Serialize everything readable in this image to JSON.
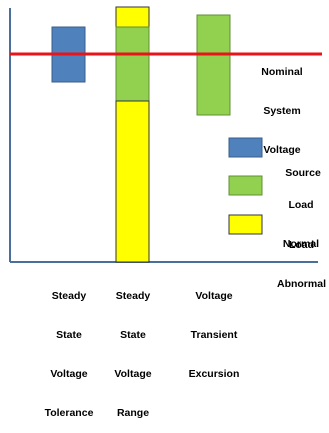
{
  "colors": {
    "source": "#4f81bd",
    "source_border": "#385d8a",
    "load_normal": "#92d050",
    "load_normal_border": "#5f8f35",
    "load_abnormal": "#ffff00",
    "load_abnormal_border": "#333333",
    "nominal_line": "#e8141a",
    "axis": "#4a6f9c"
  },
  "nominal_label": [
    "Nominal",
    "System",
    "Voltage"
  ],
  "legend": [
    {
      "key": "source",
      "label": [
        "Source"
      ]
    },
    {
      "key": "load_normal",
      "label": [
        "Load",
        "Normal"
      ]
    },
    {
      "key": "load_abnormal",
      "label": [
        "Load",
        "Abnormal"
      ]
    }
  ],
  "columns": [
    {
      "label": [
        "Steady",
        "State",
        "Voltage",
        "Tolerance"
      ]
    },
    {
      "label": [
        "Steady",
        "State",
        "Voltage",
        "Range"
      ]
    },
    {
      "label": [
        "Voltage",
        "Transient",
        "Excursion"
      ]
    }
  ]
}
